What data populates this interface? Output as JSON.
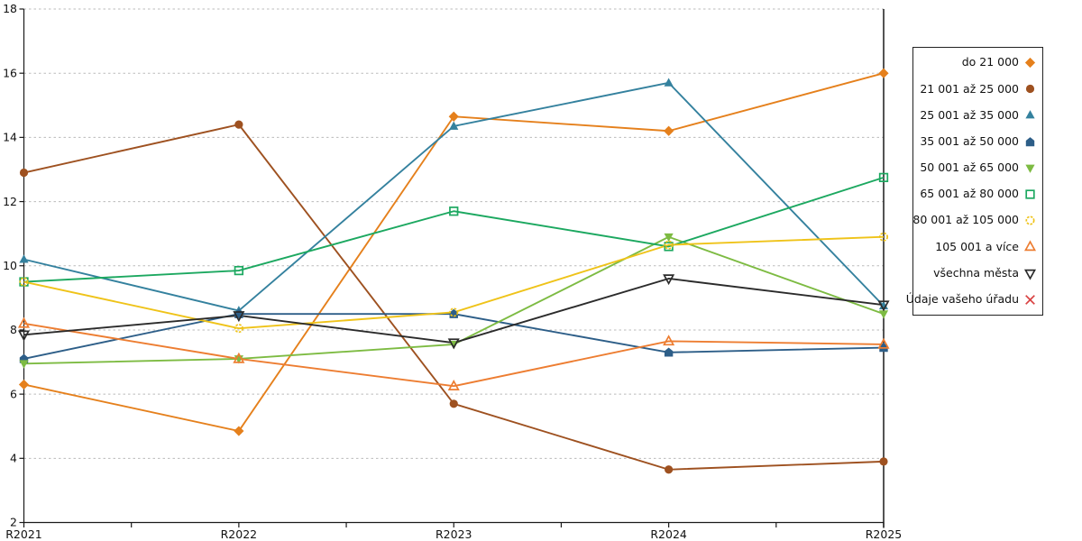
{
  "chart_data": {
    "type": "line",
    "title": "",
    "xlabel": "",
    "ylabel": "",
    "x_categories": [
      "R2021",
      "R2022",
      "R2023",
      "R2024",
      "R2025"
    ],
    "y_ticks": [
      2,
      4,
      6,
      8,
      10,
      12,
      14,
      16,
      18
    ],
    "ylim": [
      2,
      18
    ],
    "grid": "horizontal-dashed",
    "legend_position": "right-outside",
    "colors": {
      "axis": "#1a1a1a",
      "gridline": "#bbbbbb"
    },
    "series": [
      {
        "name": "do 21 000",
        "color": "#e5801c",
        "marker": "diamond",
        "fill": "filled",
        "values": [
          6.3,
          4.85,
          14.65,
          14.2,
          16.0
        ]
      },
      {
        "name": "21 001 až 25 000",
        "color": "#9e5120",
        "marker": "circle",
        "fill": "filled",
        "values": [
          12.9,
          14.4,
          5.7,
          3.65,
          3.9
        ]
      },
      {
        "name": "25 001 až 35 000",
        "color": "#34819e",
        "marker": "triangle-up",
        "fill": "filled",
        "values": [
          10.2,
          8.6,
          14.35,
          15.7,
          8.75
        ]
      },
      {
        "name": "35 001 až 50 000",
        "color": "#2d5e88",
        "marker": "pentagon",
        "fill": "filled",
        "values": [
          7.1,
          8.5,
          8.5,
          7.3,
          7.45
        ]
      },
      {
        "name": "50 001 až 65 000",
        "color": "#7dbb42",
        "marker": "triangle-down",
        "fill": "filled",
        "values": [
          6.95,
          7.1,
          7.55,
          10.9,
          8.5
        ]
      },
      {
        "name": "65 001 až 80 000",
        "color": "#1ca860",
        "marker": "square",
        "fill": "open",
        "values": [
          9.5,
          9.85,
          11.7,
          10.6,
          12.75
        ]
      },
      {
        "name": "80 001 až 105 000",
        "color": "#efc319",
        "marker": "circle",
        "fill": "open",
        "marker_dashed": true,
        "values": [
          9.5,
          8.05,
          8.55,
          10.65,
          10.9
        ]
      },
      {
        "name": "105 001 a více",
        "color": "#ed7d31",
        "marker": "triangle-up",
        "fill": "open",
        "values": [
          8.2,
          7.1,
          6.25,
          7.65,
          7.55
        ]
      },
      {
        "name": "všechna města",
        "color": "#2b2b2b",
        "marker": "triangle-down",
        "fill": "open",
        "values": [
          7.85,
          8.45,
          7.6,
          9.6,
          8.78
        ]
      },
      {
        "name": "Údaje vašeho úřadu",
        "color": "#d94343",
        "marker": "x",
        "fill": "open",
        "values": []
      }
    ]
  }
}
